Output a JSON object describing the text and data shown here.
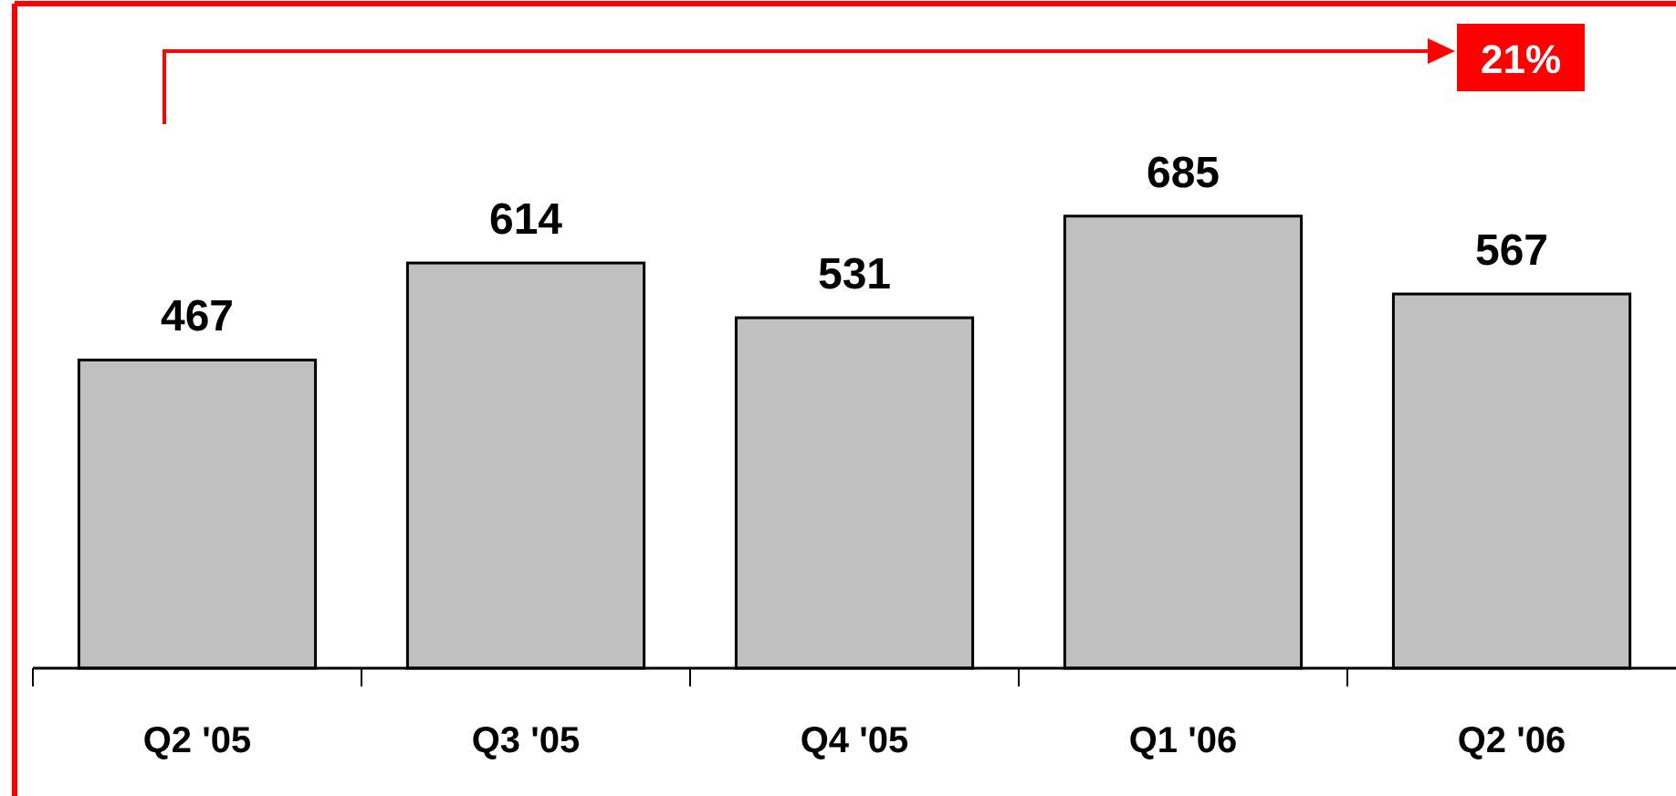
{
  "chart_data": {
    "type": "bar",
    "categories": [
      "Q2 '05",
      "Q3 '05",
      "Q4 '05",
      "Q1 '06",
      "Q2 '06"
    ],
    "values": [
      467,
      614,
      531,
      685,
      567
    ],
    "color": "#c0c0c0",
    "data_labels": true,
    "annotations": [
      "21%"
    ]
  }
}
